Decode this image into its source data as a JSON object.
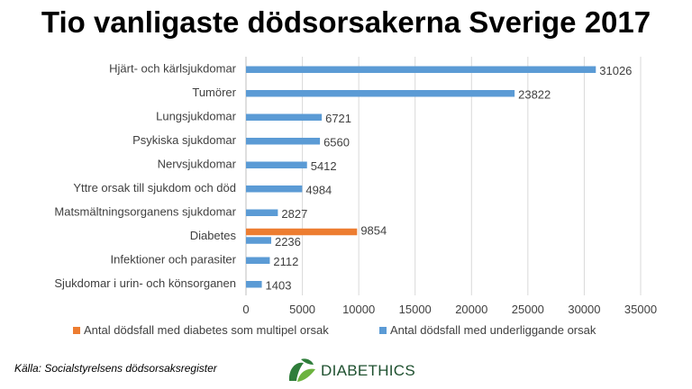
{
  "chart_data": {
    "type": "bar",
    "orientation": "horizontal",
    "title": "Tio vanligaste dödsorsakerna Sverige 2017",
    "categories": [
      "Hjärt- och kärlsjukdomar",
      "Tumörer",
      "Lungsjukdomar",
      "Psykiska sjukdomar",
      "Nervsjukdomar",
      "Yttre orsak till sjukdom och död",
      "Matsmältningsorganens sjukdomar",
      "Diabetes",
      "Infektioner och parasiter",
      "Sjukdomar i urin- och könsorganen"
    ],
    "series": [
      {
        "name": "Antal dödsfall med diabetes som multipel orsak",
        "color": "#ed7d31",
        "values": [
          null,
          null,
          null,
          null,
          null,
          null,
          null,
          9854,
          null,
          null
        ]
      },
      {
        "name": "Antal dödsfall med underliggande orsak",
        "color": "#5b9bd5",
        "values": [
          31026,
          23822,
          6721,
          6560,
          5412,
          4984,
          2827,
          2236,
          2112,
          1403
        ]
      }
    ],
    "xlim": [
      0,
      35000
    ],
    "xticks": [
      "0",
      "5000",
      "10000",
      "15000",
      "20000",
      "25000",
      "30000",
      "35000"
    ],
    "grid": true,
    "legend_position": "bottom"
  },
  "footer": {
    "source": "Källa: Socialstyrelsens dödsorsaksregister",
    "logo_text": "DIABETHICS",
    "logo_icon": "leaf-logo-icon"
  }
}
